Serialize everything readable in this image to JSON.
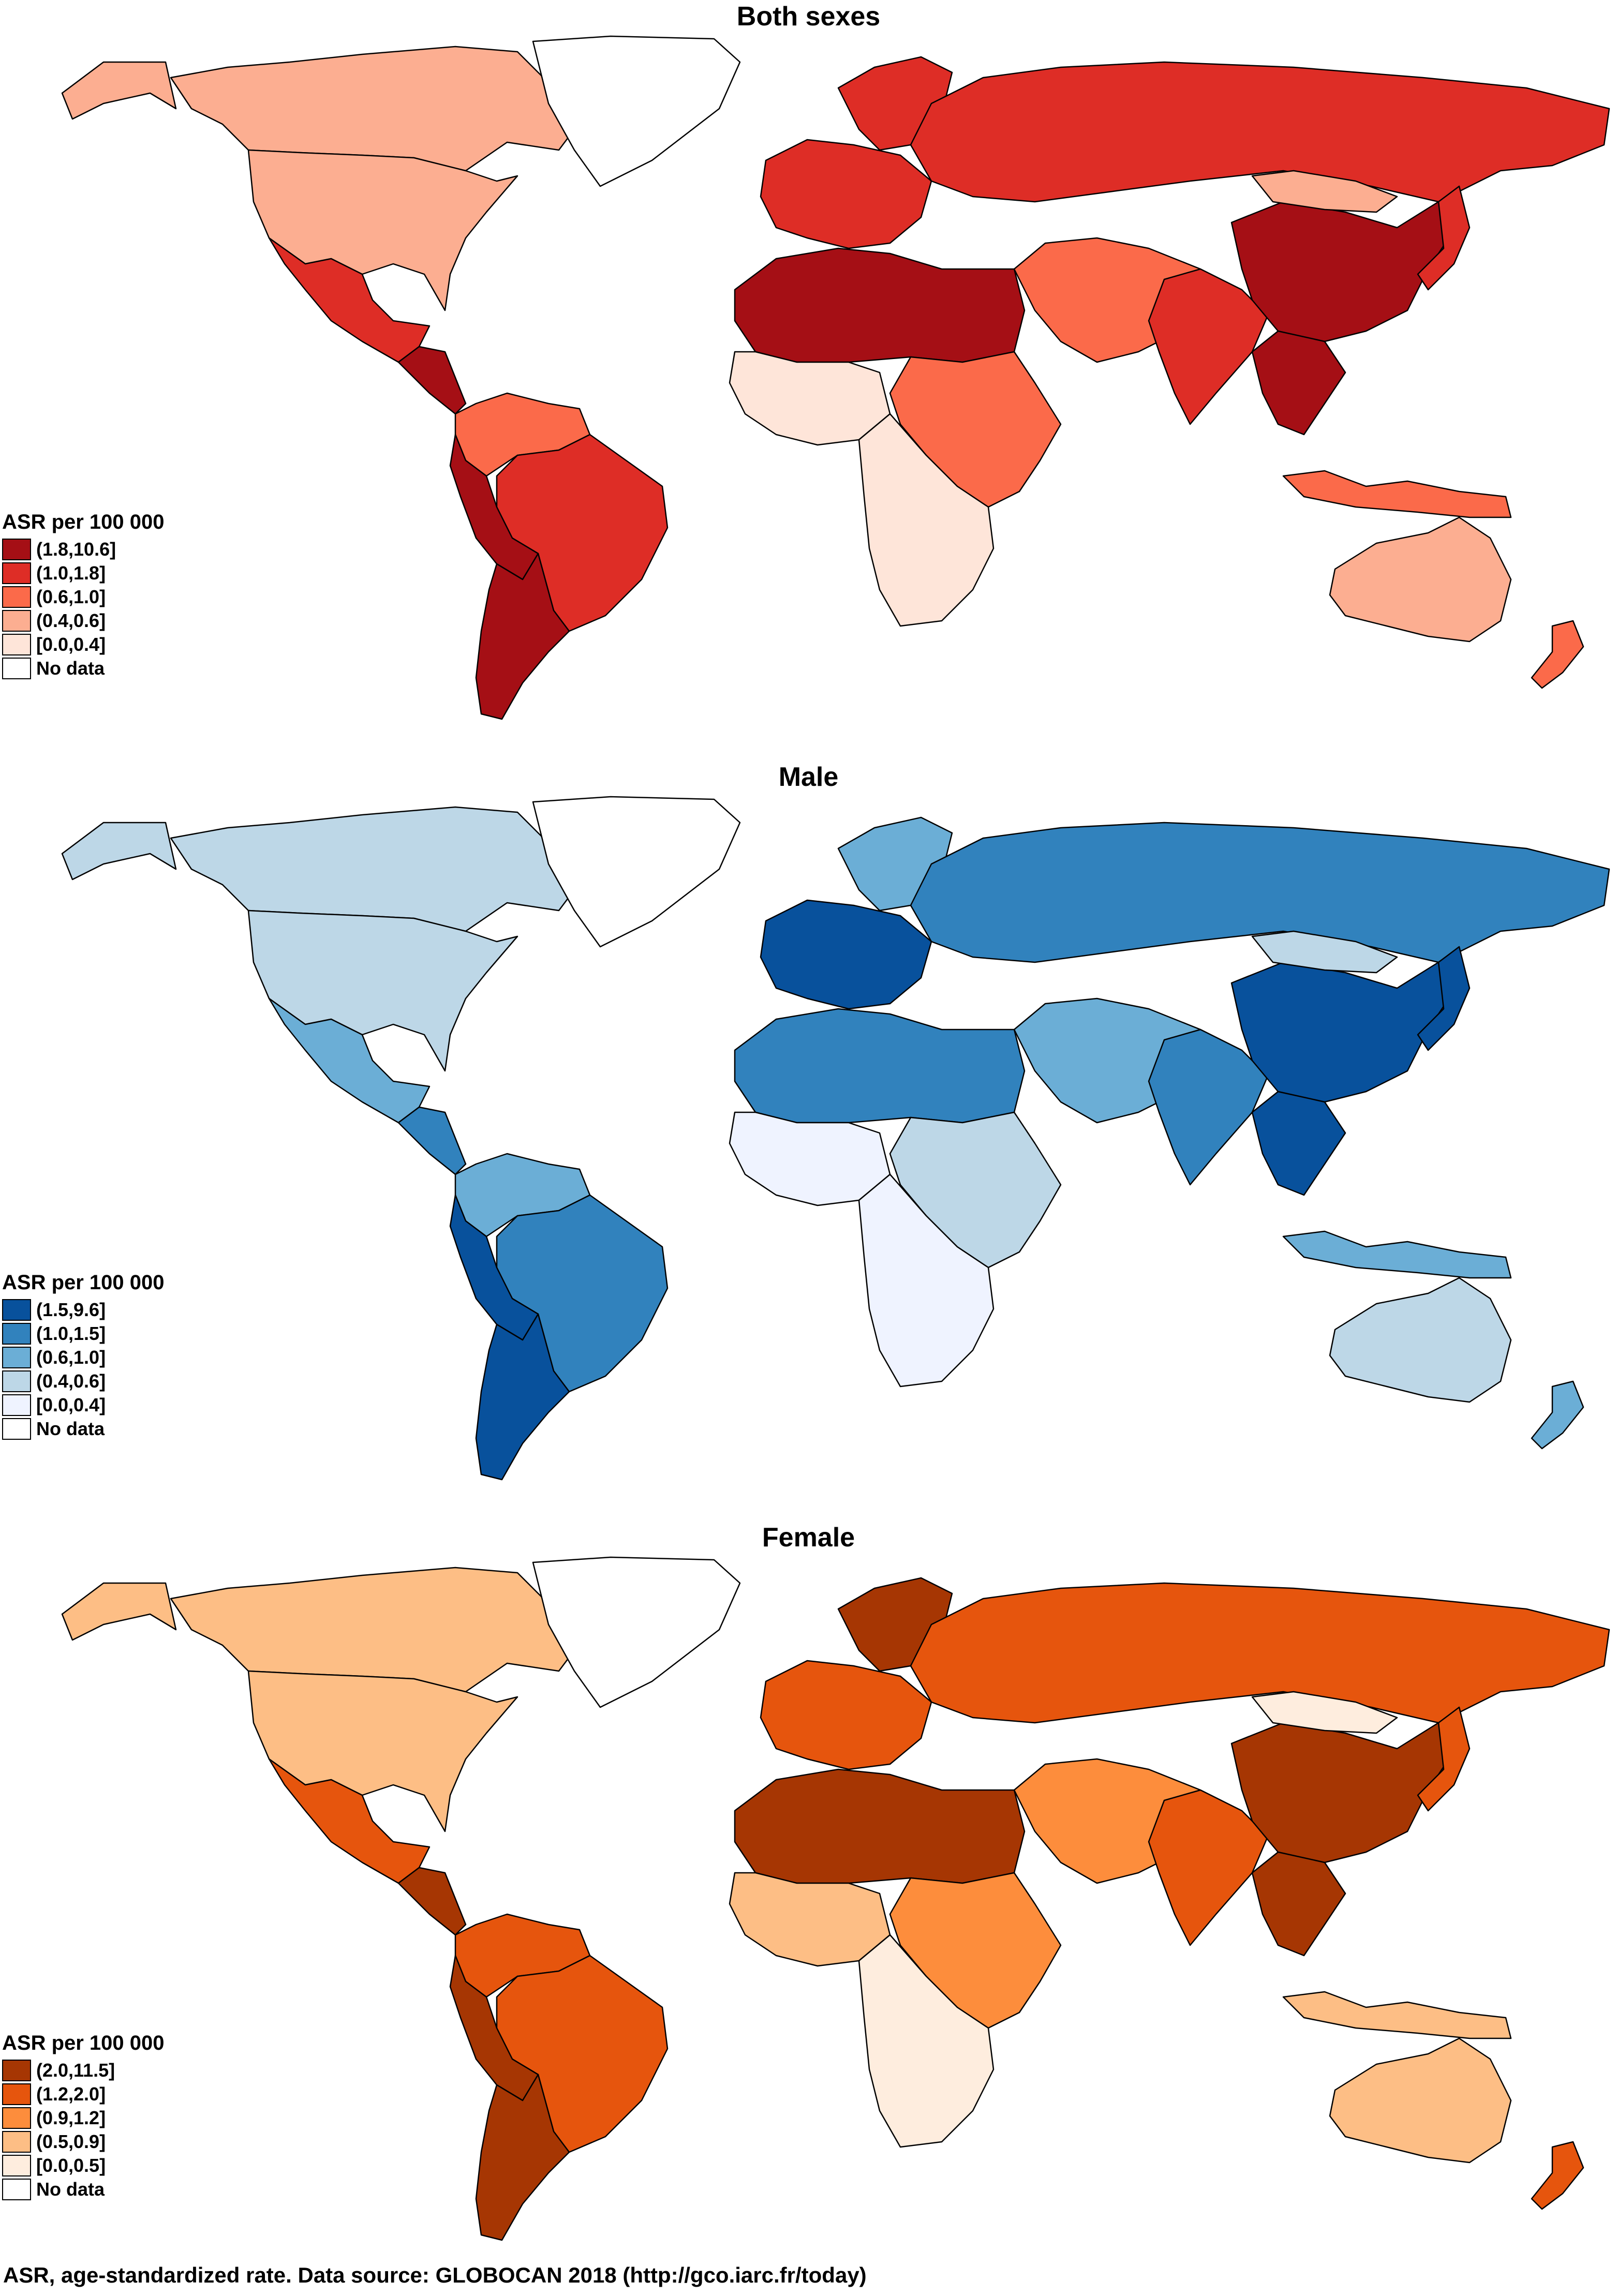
{
  "panels": [
    {
      "title": "Both sexes",
      "legend": {
        "title": "ASR per 100 000",
        "items": [
          {
            "label": "(1.8,10.6]",
            "color": "#a50f15"
          },
          {
            "label": "(1.0,1.8]",
            "color": "#de2d26"
          },
          {
            "label": "(0.6,1.0]",
            "color": "#fb6a4a"
          },
          {
            "label": "(0.4,0.6]",
            "color": "#fcae91"
          },
          {
            "label": "[0.0,0.4]",
            "color": "#fee5d9"
          },
          {
            "label": "No data",
            "color": "#ffffff"
          }
        ]
      }
    },
    {
      "title": "Male",
      "legend": {
        "title": "ASR per 100 000",
        "items": [
          {
            "label": "(1.5,9.6]",
            "color": "#08519c"
          },
          {
            "label": "(1.0,1.5]",
            "color": "#3182bd"
          },
          {
            "label": "(0.6,1.0]",
            "color": "#6baed6"
          },
          {
            "label": "(0.4,0.6]",
            "color": "#bdd7e7"
          },
          {
            "label": "[0.0,0.4]",
            "color": "#eff3ff"
          },
          {
            "label": "No data",
            "color": "#ffffff"
          }
        ]
      }
    },
    {
      "title": "Female",
      "legend": {
        "title": "ASR per 100 000",
        "items": [
          {
            "label": "(2.0,11.5]",
            "color": "#a63603"
          },
          {
            "label": "(1.2,2.0]",
            "color": "#e6550d"
          },
          {
            "label": "(0.9,1.2]",
            "color": "#fd8d3c"
          },
          {
            "label": "(0.5,0.9]",
            "color": "#fdbe85"
          },
          {
            "label": "[0.0,0.5]",
            "color": "#feedde"
          },
          {
            "label": "No data",
            "color": "#ffffff"
          }
        ]
      }
    }
  ],
  "regions": [
    {
      "name": "canada",
      "classes": [
        3,
        3,
        3
      ]
    },
    {
      "name": "usa",
      "classes": [
        3,
        3,
        3
      ]
    },
    {
      "name": "alaska",
      "classes": [
        3,
        3,
        3
      ]
    },
    {
      "name": "greenland",
      "classes": [
        5,
        5,
        5
      ]
    },
    {
      "name": "mexico",
      "classes": [
        1,
        2,
        1
      ]
    },
    {
      "name": "central-america",
      "classes": [
        0,
        1,
        0
      ]
    },
    {
      "name": "venezuela-colombia",
      "classes": [
        2,
        2,
        1
      ]
    },
    {
      "name": "brazil",
      "classes": [
        1,
        1,
        1
      ]
    },
    {
      "name": "andes",
      "classes": [
        0,
        0,
        0
      ]
    },
    {
      "name": "argentina-chile",
      "classes": [
        0,
        0,
        0
      ]
    },
    {
      "name": "western-europe",
      "classes": [
        1,
        0,
        1
      ]
    },
    {
      "name": "scandinavia",
      "classes": [
        1,
        2,
        0
      ]
    },
    {
      "name": "russia",
      "classes": [
        1,
        1,
        1
      ]
    },
    {
      "name": "north-africa",
      "classes": [
        0,
        1,
        0
      ]
    },
    {
      "name": "west-africa",
      "classes": [
        4,
        4,
        3
      ]
    },
    {
      "name": "east-africa",
      "classes": [
        2,
        3,
        2
      ]
    },
    {
      "name": "southern-africa",
      "classes": [
        4,
        4,
        4
      ]
    },
    {
      "name": "middle-east",
      "classes": [
        2,
        2,
        2
      ]
    },
    {
      "name": "india",
      "classes": [
        1,
        1,
        1
      ]
    },
    {
      "name": "china",
      "classes": [
        0,
        0,
        0
      ]
    },
    {
      "name": "mongolia",
      "classes": [
        3,
        3,
        4
      ]
    },
    {
      "name": "southeast-asia",
      "classes": [
        0,
        0,
        0
      ]
    },
    {
      "name": "japan",
      "classes": [
        1,
        0,
        1
      ]
    },
    {
      "name": "indonesia",
      "classes": [
        2,
        2,
        3
      ]
    },
    {
      "name": "australia",
      "classes": [
        3,
        3,
        3
      ]
    },
    {
      "name": "new-zealand",
      "classes": [
        2,
        2,
        1
      ]
    }
  ],
  "footer": "ASR, age-standardized rate. Data source: GLOBOCAN 2018 (http://gco.iarc.fr/today)"
}
